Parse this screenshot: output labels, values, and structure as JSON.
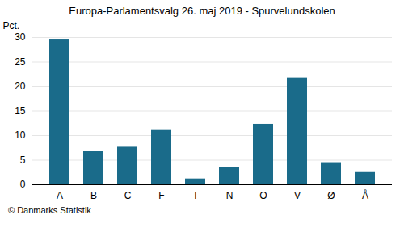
{
  "chart_data": {
    "type": "bar",
    "title": "Europa-Parlamentsvalg 26. maj 2019 - Spurvelundskolen",
    "categories": [
      "A",
      "B",
      "C",
      "F",
      "I",
      "N",
      "O",
      "V",
      "Ø",
      "Å"
    ],
    "values": [
      29.5,
      6.8,
      7.8,
      11.2,
      1.2,
      3.6,
      12.3,
      21.7,
      4.5,
      2.5
    ],
    "color": "#1a6b8a",
    "ylabel": "Pct.",
    "ylim": [
      0,
      30
    ],
    "yticks": [
      0,
      5,
      10,
      15,
      20,
      25,
      30
    ],
    "grid": true,
    "caption": "© Danmarks Statistik"
  }
}
